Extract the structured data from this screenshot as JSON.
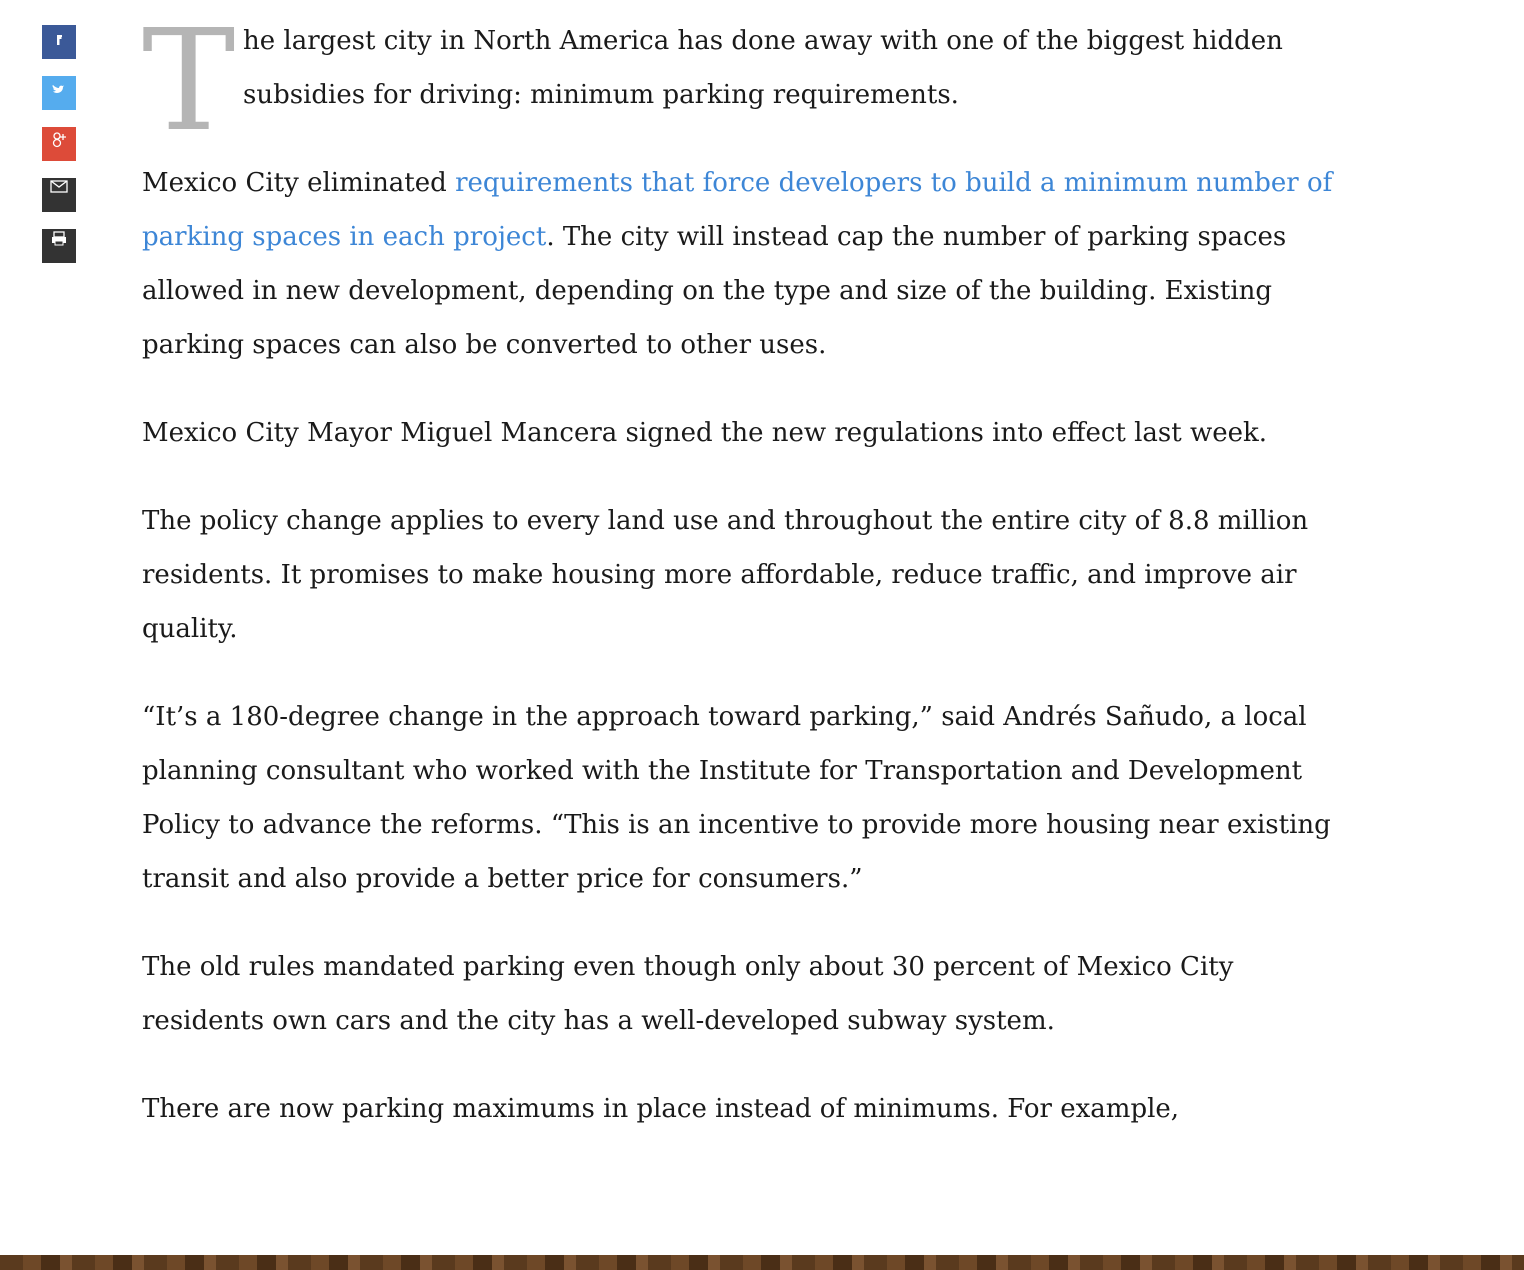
{
  "article": {
    "drop_cap": "T",
    "lead": "he largest city in North America has done away with one of the biggest hidden subsidies for driving: minimum parking requirements.",
    "linked_paragraph": {
      "before": "Mexico City eliminated ",
      "link": "requirements that force developers to build a minimum number of parking spaces in each project",
      "after": ". The city will instead cap the number of parking spaces allowed in new development, depending on the type and size of the building. Existing parking spaces can also be converted to other uses."
    },
    "paragraphs": [
      "Mexico City Mayor Miguel Mancera signed the new regulations into effect last week.",
      "The policy change applies to every land use and throughout the entire city of 8.8 million residents. It promises to make housing more affordable, reduce traffic, and improve air quality.",
      "“It’s a 180-degree change in the approach toward parking,” said Andrés Sañudo, a local planning consultant who worked with the Institute for Transportation and Development Policy to advance the reforms. “This is an incentive to provide more housing near existing transit and also provide a better price for consumers.”",
      "The old rules mandated parking even though only about 30 percent of Mexico City residents own cars and the city has a well-developed subway system.",
      "There are now parking maximums in place instead of minimums. For example,"
    ]
  }
}
